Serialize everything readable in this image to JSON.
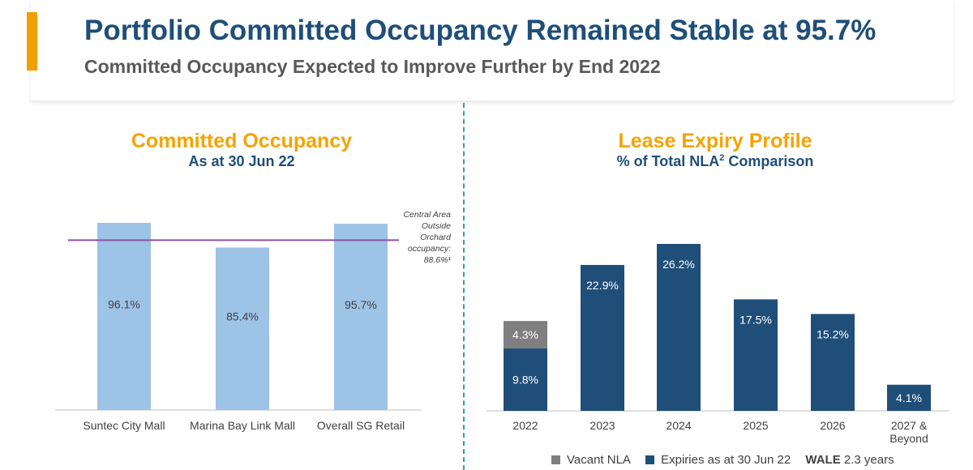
{
  "header": {
    "title": "Portfolio Committed Occupancy Remained Stable at 95.7%",
    "subtitle": "Committed Occupancy Expected to Improve Further by End 2022"
  },
  "left_chart": {
    "title": "Committed Occupancy",
    "subtitle": "As at 30 Jun 22",
    "annotation": [
      "Central Area",
      "Outside",
      "Orchard",
      "occupancy:",
      "88.6%¹"
    ]
  },
  "right_chart": {
    "title": "Lease Expiry Profile",
    "subtitle_prefix": "% of Total NLA",
    "subtitle_sup": "2",
    "subtitle_suffix": " Comparison"
  },
  "legend": {
    "vacant": "Vacant NLA",
    "expiries": "Expiries as at 30 Jun 22",
    "wale_label": "WALE",
    "wale_value": "2.3 years"
  },
  "colors": {
    "light_blue": "#9dc3e6",
    "navy": "#1f4e79",
    "grey": "#7f7f7f",
    "orange": "#f5a300",
    "reference_line": "#8b4fa0"
  },
  "chart_data": [
    {
      "type": "bar",
      "categories": [
        "Suntec City Mall",
        "Marina Bay Link Mall",
        "Overall SG Retail"
      ],
      "values": [
        96.1,
        85.4,
        95.7
      ],
      "value_labels": [
        "96.1%",
        "85.4%",
        "95.7%"
      ],
      "reference_line": 88.6,
      "ylim": [
        0,
        100
      ],
      "title": "Committed Occupancy",
      "subtitle": "As at 30 Jun 22"
    },
    {
      "type": "bar",
      "stacked": true,
      "categories": [
        "2022",
        "2023",
        "2024",
        "2025",
        "2026",
        "2027 & Beyond"
      ],
      "series": [
        {
          "name": "Expiries as at 30 Jun 22",
          "values": [
            9.8,
            22.9,
            26.2,
            17.5,
            15.2,
            4.1
          ],
          "labels": [
            "9.8%",
            "22.9%",
            "26.2%",
            "17.5%",
            "15.2%",
            "4.1%"
          ]
        },
        {
          "name": "Vacant NLA",
          "values": [
            4.3,
            0,
            0,
            0,
            0,
            0
          ],
          "labels": [
            "4.3%",
            "",
            "",
            "",
            "",
            ""
          ]
        }
      ],
      "ylim": [
        0,
        30
      ],
      "title": "Lease Expiry Profile",
      "subtitle": "% of Total NLA² Comparison"
    }
  ]
}
